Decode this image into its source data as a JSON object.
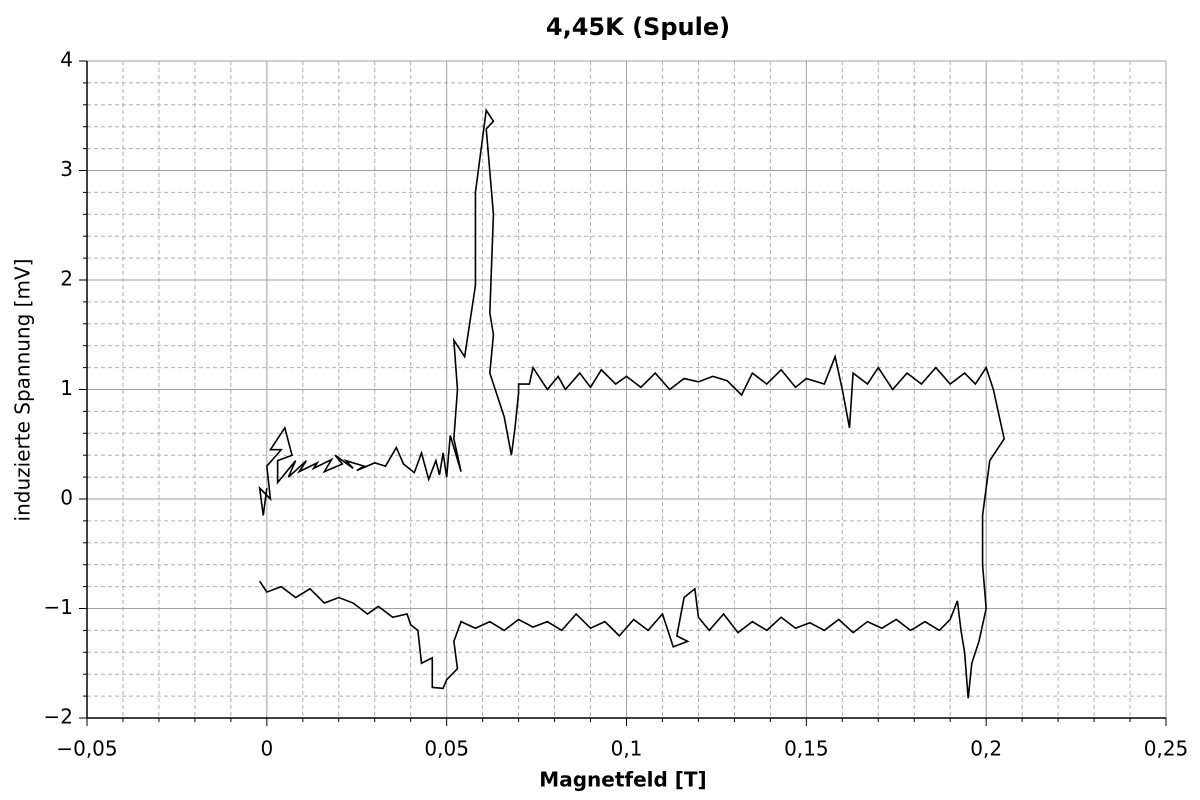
{
  "chart_data": {
    "type": "line",
    "title": "4,45K (Spule)",
    "x_label": "Magnetfeld [T]",
    "y_label": "induzierte Spannung [mV]",
    "xlim": [
      -0.05,
      0.25
    ],
    "ylim": [
      -2,
      4
    ],
    "xticks": [
      {
        "value": -0.05,
        "label": "−0,05"
      },
      0,
      {
        "value": 0.05,
        "label": "0,05"
      },
      {
        "value": 0.1,
        "label": "0,1"
      },
      {
        "value": 0.15,
        "label": "0,15"
      },
      {
        "value": 0.2,
        "label": "0,2"
      },
      {
        "value": 0.25,
        "label": "0,25"
      }
    ],
    "yticks": [
      {
        "value": -2,
        "label": "−2"
      },
      {
        "value": -1,
        "label": "−1"
      },
      0,
      1,
      2,
      3,
      4
    ],
    "xminor": [
      -0.04,
      -0.03,
      -0.02,
      -0.01,
      0.01,
      0.02,
      0.03,
      0.04,
      0.06,
      0.07,
      0.08,
      0.09,
      0.11,
      0.12,
      0.13,
      0.14,
      0.16,
      0.17,
      0.18,
      0.19,
      0.21,
      0.22,
      0.23,
      0.24
    ],
    "yminor": [
      -1.8,
      -1.6,
      -1.4,
      -1.2,
      -0.8,
      -0.6,
      -0.4,
      -0.2,
      0.2,
      0.4,
      0.6,
      0.8,
      1.2,
      1.4,
      1.6,
      1.8,
      2.2,
      2.4,
      2.6,
      2.8,
      3.2,
      3.4,
      3.6,
      3.8
    ],
    "grid": true,
    "x": [
      0.0,
      -0.001,
      -0.002,
      0.001,
      0.0,
      0.004,
      0.001,
      0.005,
      0.007,
      0.003,
      0.003,
      0.008,
      0.006,
      0.011,
      0.009,
      0.014,
      0.013,
      0.018,
      0.016,
      0.021,
      0.019,
      0.024,
      0.022,
      0.027,
      0.025,
      0.03,
      0.033,
      0.036,
      0.038,
      0.041,
      0.043,
      0.045,
      0.047,
      0.048,
      0.049,
      0.05,
      0.051,
      0.054,
      0.052,
      0.053,
      0.052,
      0.055,
      0.058,
      0.058,
      0.06,
      0.061,
      0.063,
      0.061,
      0.063,
      0.062,
      0.063,
      0.062,
      0.066,
      0.068,
      0.069,
      0.07,
      0.07,
      0.073,
      0.074,
      0.078,
      0.081,
      0.083,
      0.087,
      0.09,
      0.093,
      0.097,
      0.1,
      0.104,
      0.108,
      0.112,
      0.116,
      0.12,
      0.124,
      0.128,
      0.132,
      0.135,
      0.139,
      0.143,
      0.147,
      0.15,
      0.155,
      0.158,
      0.16,
      0.162,
      0.163,
      0.167,
      0.17,
      0.174,
      0.178,
      0.182,
      0.186,
      0.19,
      0.194,
      0.197,
      0.2,
      0.202,
      0.205,
      0.201,
      0.199,
      0.199,
      0.2,
      0.198,
      0.196,
      0.195,
      0.194,
      0.193,
      0.192,
      0.19,
      0.187,
      0.183,
      0.179,
      0.175,
      0.171,
      0.167,
      0.163,
      0.159,
      0.155,
      0.151,
      0.147,
      0.143,
      0.139,
      0.135,
      0.131,
      0.127,
      0.123,
      0.12,
      0.119,
      0.116,
      0.114,
      0.117,
      0.113,
      0.11,
      0.106,
      0.102,
      0.098,
      0.094,
      0.09,
      0.086,
      0.082,
      0.078,
      0.074,
      0.07,
      0.066,
      0.062,
      0.058,
      0.054,
      0.052,
      0.053,
      0.05,
      0.049,
      0.046,
      0.046,
      0.043,
      0.042,
      0.04,
      0.039,
      0.035,
      0.031,
      0.028,
      0.024,
      0.02,
      0.016,
      0.012,
      0.008,
      0.004,
      0.0,
      -0.002
    ],
    "series": [
      {
        "color": "#000000",
        "values": [
          0.1,
          -0.15,
          0.1,
          0.0,
          0.3,
          0.45,
          0.45,
          0.65,
          0.4,
          0.35,
          0.15,
          0.35,
          0.2,
          0.35,
          0.25,
          0.33,
          0.28,
          0.36,
          0.25,
          0.32,
          0.4,
          0.28,
          0.35,
          0.3,
          0.26,
          0.33,
          0.3,
          0.47,
          0.32,
          0.24,
          0.42,
          0.18,
          0.35,
          0.22,
          0.42,
          0.2,
          0.58,
          0.25,
          0.55,
          1.0,
          1.45,
          1.3,
          1.95,
          2.8,
          3.3,
          3.55,
          3.45,
          3.38,
          2.6,
          1.7,
          1.5,
          1.15,
          0.75,
          0.4,
          0.65,
          0.97,
          1.05,
          1.05,
          1.2,
          1.0,
          1.12,
          1.0,
          1.15,
          1.02,
          1.18,
          1.05,
          1.12,
          1.02,
          1.15,
          1.0,
          1.1,
          1.07,
          1.12,
          1.08,
          0.95,
          1.15,
          1.05,
          1.18,
          1.02,
          1.1,
          1.05,
          1.3,
          1.0,
          0.65,
          1.15,
          1.05,
          1.2,
          1.0,
          1.15,
          1.05,
          1.2,
          1.05,
          1.15,
          1.05,
          1.2,
          1.0,
          0.55,
          0.35,
          -0.15,
          -0.6,
          -1.0,
          -1.3,
          -1.5,
          -1.82,
          -1.4,
          -1.2,
          -0.93,
          -1.1,
          -1.2,
          -1.12,
          -1.2,
          -1.1,
          -1.18,
          -1.12,
          -1.22,
          -1.1,
          -1.2,
          -1.13,
          -1.18,
          -1.08,
          -1.2,
          -1.12,
          -1.22,
          -1.05,
          -1.2,
          -1.08,
          -0.82,
          -0.9,
          -1.25,
          -1.3,
          -1.35,
          -1.05,
          -1.2,
          -1.1,
          -1.25,
          -1.12,
          -1.18,
          -1.05,
          -1.2,
          -1.12,
          -1.17,
          -1.1,
          -1.2,
          -1.12,
          -1.18,
          -1.12,
          -1.3,
          -1.55,
          -1.65,
          -1.73,
          -1.72,
          -1.45,
          -1.5,
          -1.2,
          -1.15,
          -1.05,
          -1.08,
          -0.98,
          -1.05,
          -0.95,
          -0.9,
          -0.95,
          -0.82,
          -0.9,
          -0.8,
          -0.85,
          -0.75
        ]
      }
    ]
  }
}
